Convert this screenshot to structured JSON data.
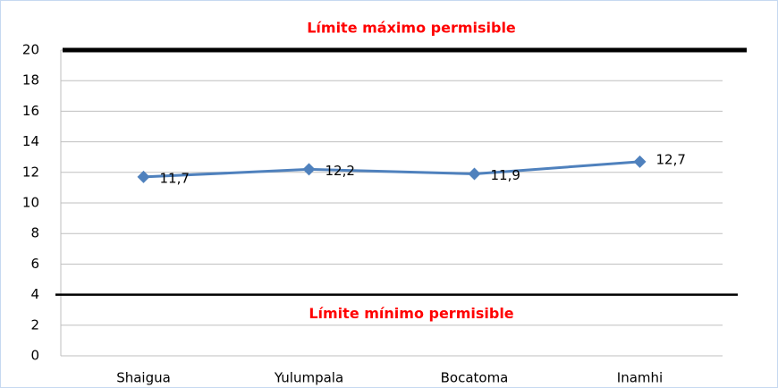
{
  "chart_data": {
    "type": "line",
    "categories": [
      "Shaigua",
      "Yulumpala",
      "Bocatoma",
      "Inamhi"
    ],
    "series": [
      {
        "name": null,
        "color": "#4f81bd",
        "values": [
          11.7,
          12.2,
          11.9,
          12.7
        ],
        "value_labels": [
          "11,7",
          "12,2",
          "11,9",
          "12,7"
        ]
      }
    ],
    "ylim": [
      0,
      20
    ],
    "yticks": [
      0,
      2,
      4,
      6,
      8,
      10,
      12,
      14,
      16,
      18,
      20
    ],
    "grid": true,
    "reference_lines": [
      {
        "value": 20,
        "label": "Límite máximo permisible",
        "color": "#ff0000"
      },
      {
        "value": 4,
        "label": "Límite mínimo permisible",
        "color": "#ff0000"
      }
    ]
  }
}
